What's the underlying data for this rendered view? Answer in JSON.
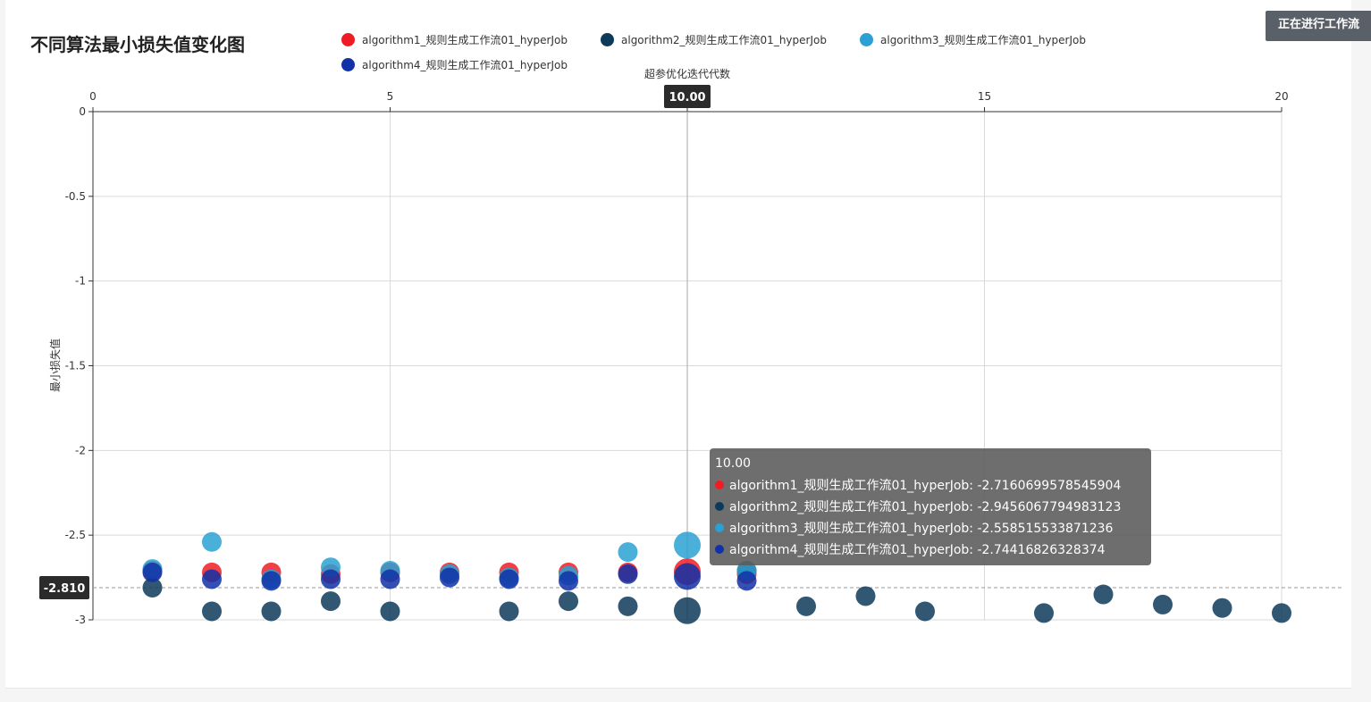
{
  "header": {
    "title": "不同算法最小损失值变化图",
    "status_button": "正在进行工作流"
  },
  "chart_data": {
    "type": "scatter",
    "title": "不同算法最小损失值变化图",
    "xlabel": "超参优化迭代代数",
    "ylabel": "最小损失值",
    "xlim": [
      0,
      20
    ],
    "ylim": [
      -3,
      0
    ],
    "x_ticks": [
      "0",
      "5",
      "10",
      "15",
      "20"
    ],
    "y_ticks": [
      "0",
      "-0.5",
      "-1",
      "-1.5",
      "-2",
      "-2.5",
      "-3"
    ],
    "series": [
      {
        "name": "algorithm1_规则生成工作流01_hyperJob",
        "color": "#f01c24",
        "points": [
          [
            1,
            -2.71
          ],
          [
            2,
            -2.72
          ],
          [
            3,
            -2.72
          ],
          [
            4,
            -2.73
          ],
          [
            5,
            -2.72
          ],
          [
            6,
            -2.72
          ],
          [
            7,
            -2.72
          ],
          [
            8,
            -2.72
          ],
          [
            9,
            -2.72
          ],
          [
            10,
            -2.716
          ],
          [
            11,
            -2.73
          ]
        ]
      },
      {
        "name": "algorithm2_规则生成工作流01_hyperJob",
        "color": "#0d3a5a",
        "points": [
          [
            1,
            -2.81
          ],
          [
            2,
            -2.95
          ],
          [
            3,
            -2.95
          ],
          [
            4,
            -2.89
          ],
          [
            5,
            -2.95
          ],
          [
            7,
            -2.95
          ],
          [
            8,
            -2.89
          ],
          [
            9,
            -2.92
          ],
          [
            10,
            -2.946
          ],
          [
            11,
            -2.71
          ],
          [
            12,
            -2.92
          ],
          [
            13,
            -2.86
          ],
          [
            14,
            -2.95
          ],
          [
            16,
            -2.96
          ],
          [
            17,
            -2.85
          ],
          [
            18,
            -2.91
          ],
          [
            19,
            -2.93
          ],
          [
            20,
            -2.96
          ]
        ]
      },
      {
        "name": "algorithm3_规则生成工作流01_hyperJob",
        "color": "#2aa1d2",
        "points": [
          [
            1,
            -2.7
          ],
          [
            2,
            -2.54
          ],
          [
            3,
            -2.76
          ],
          [
            4,
            -2.69
          ],
          [
            5,
            -2.71
          ],
          [
            6,
            -2.73
          ],
          [
            7,
            -2.75
          ],
          [
            8,
            -2.74
          ],
          [
            9,
            -2.6
          ],
          [
            10,
            -2.559
          ],
          [
            11,
            -2.71
          ]
        ]
      },
      {
        "name": "algorithm4_规则生成工作流01_hyperJob",
        "color": "#1131a8",
        "points": [
          [
            1,
            -2.72
          ],
          [
            2,
            -2.76
          ],
          [
            3,
            -2.77
          ],
          [
            4,
            -2.76
          ],
          [
            5,
            -2.76
          ],
          [
            6,
            -2.75
          ],
          [
            7,
            -2.76
          ],
          [
            8,
            -2.77
          ],
          [
            9,
            -2.73
          ],
          [
            10,
            -2.744
          ],
          [
            11,
            -2.77
          ]
        ]
      }
    ],
    "crosshair": {
      "x_label": "10.00",
      "y_label": "-2.810",
      "x_value": 10,
      "y_value": -2.81
    },
    "tooltip": {
      "title": "10.00",
      "rows": [
        "algorithm1_规则生成工作流01_hyperJob: -2.7160699578545904",
        "algorithm2_规则生成工作流01_hyperJob: -2.9456067794983123",
        "algorithm3_规则生成工作流01_hyperJob: -2.558515533871236",
        "algorithm4_规则生成工作流01_hyperJob: -2.74416826328374"
      ]
    },
    "legend_position": "top"
  }
}
